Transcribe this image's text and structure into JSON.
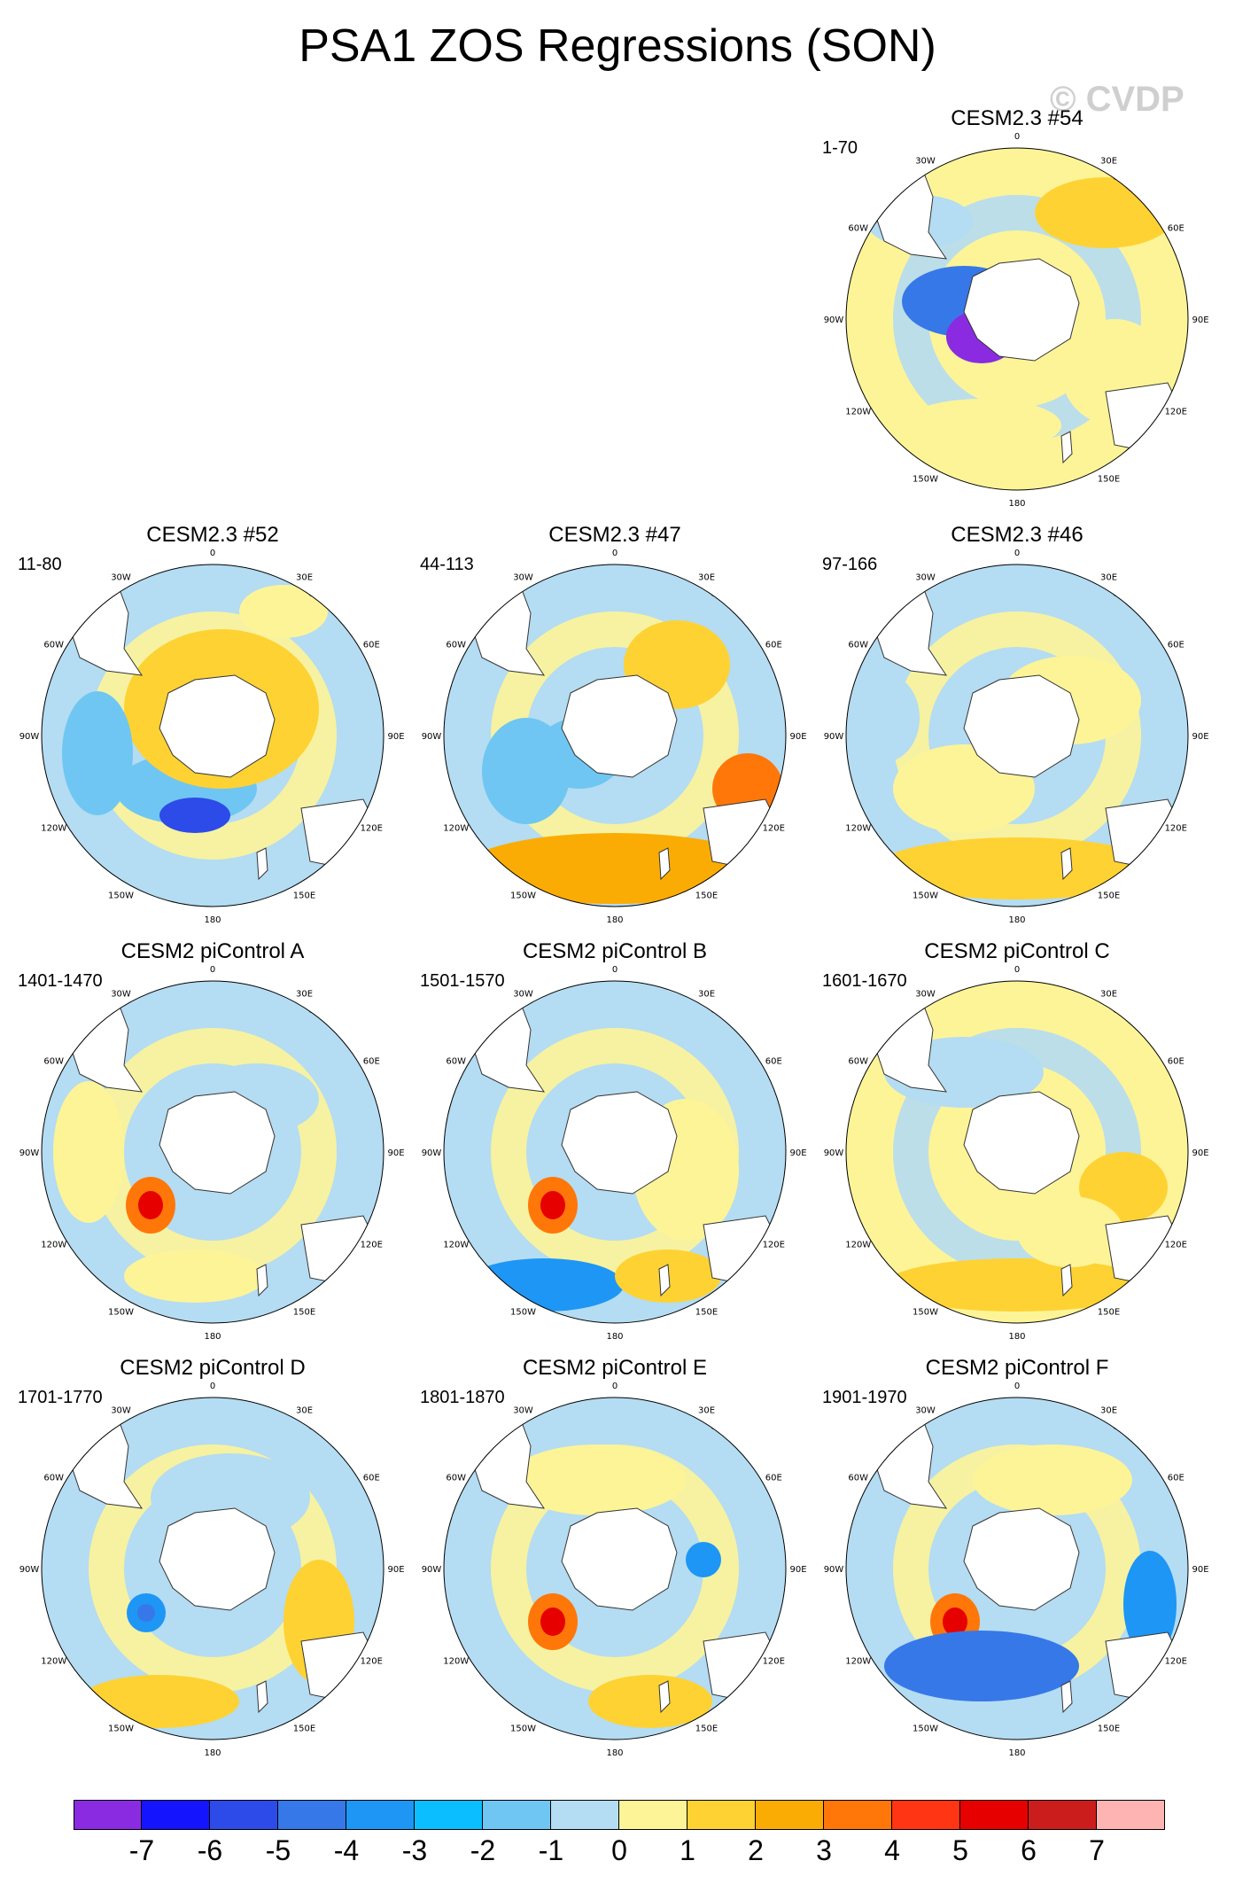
{
  "title": "PSA1 ZOS Regressions (SON)",
  "watermark": "© CVDP",
  "chart_data": {
    "type": "map",
    "projection": "south-polar-stereographic",
    "longitude_labels": [
      "0",
      "30E",
      "60E",
      "90E",
      "120E",
      "150E",
      "180",
      "150W",
      "120W",
      "90W",
      "60W",
      "30W"
    ],
    "panels": [
      {
        "title": "CESM2.3 #54",
        "period": "1-70"
      },
      {
        "title": "CESM2.3 #52",
        "period": "11-80"
      },
      {
        "title": "CESM2.3 #47",
        "period": "44-113"
      },
      {
        "title": "CESM2.3 #46",
        "period": "97-166"
      },
      {
        "title": "CESM2 piControl A",
        "period": "1401-1470"
      },
      {
        "title": "CESM2 piControl B",
        "period": "1501-1570"
      },
      {
        "title": "CESM2 piControl C",
        "period": "1601-1670"
      },
      {
        "title": "CESM2 piControl D",
        "period": "1701-1770"
      },
      {
        "title": "CESM2 piControl E",
        "period": "1801-1870"
      },
      {
        "title": "CESM2 piControl F",
        "period": "1901-1970"
      }
    ],
    "colorbar": {
      "levels": [
        "-7",
        "-6",
        "-5",
        "-4",
        "-3",
        "-2",
        "-1",
        "0",
        "1",
        "2",
        "3",
        "4",
        "5",
        "6",
        "7"
      ],
      "colors": [
        "#8a2be2",
        "#1414ff",
        "#2c4be8",
        "#3778e8",
        "#1e96f5",
        "#0abeff",
        "#6fc6f2",
        "#b4dcf2",
        "#fdf498",
        "#fed233",
        "#fbac04",
        "#ff7709",
        "#ff3514",
        "#e70000",
        "#cc1d1d",
        "#ffb4b4"
      ]
    }
  }
}
